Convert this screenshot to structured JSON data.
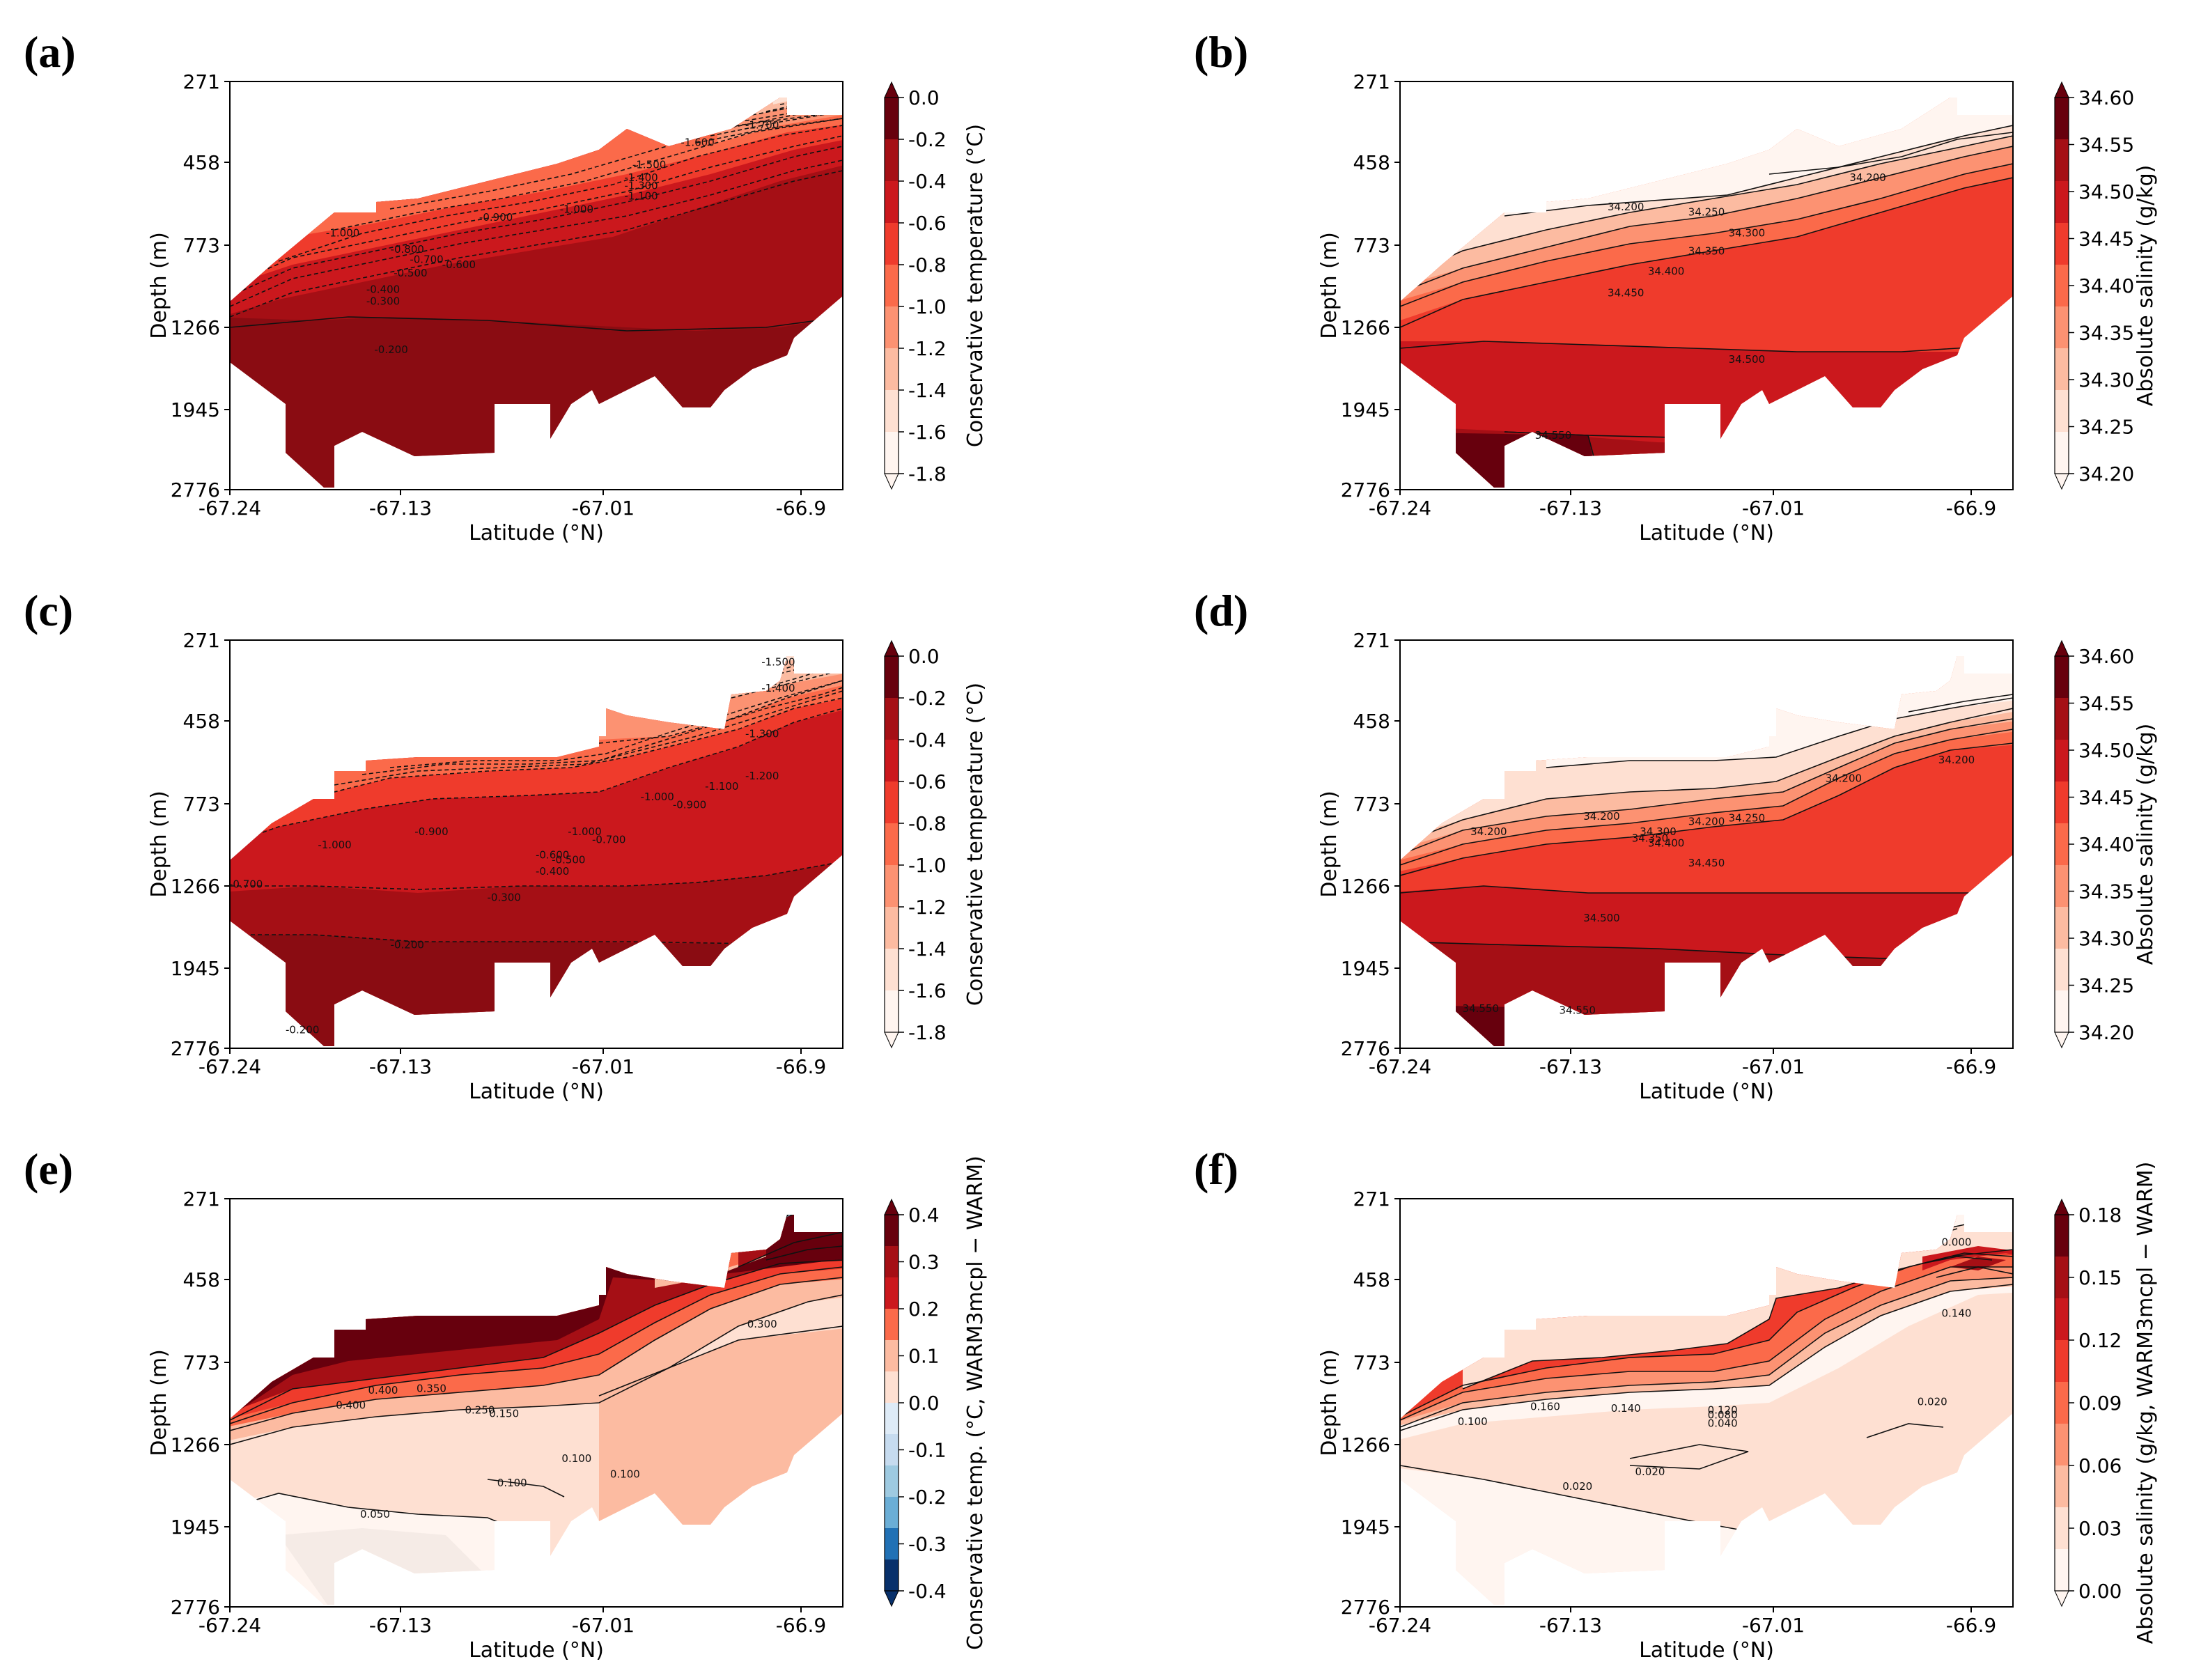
{
  "chart_data": [
    {
      "panel": "(a)",
      "type": "contourf",
      "variable": "temperature",
      "xlabel": "Latitude (°N)",
      "ylabel": "Depth (m)",
      "xticks": [
        "-67.24",
        "-67.13",
        "-67.01",
        "-66.9"
      ],
      "yticks": [
        "271",
        "458",
        "773",
        "1266",
        "1945",
        "2776"
      ],
      "xlim": [
        -67.24,
        -66.86
      ],
      "ylim": [
        2776,
        271
      ],
      "colorbar_label": "Conservative temperature (°C)",
      "colorbar_ticks": [
        "0.0",
        "-0.2",
        "-0.4",
        "-0.6",
        "-0.8",
        "-1.0",
        "-1.2",
        "-1.4",
        "-1.6",
        "-1.8"
      ],
      "contour_labels": [
        {
          "text": "-1.700",
          "lat": -66.91,
          "depth": 380
        },
        {
          "text": "-1.600",
          "lat": -66.95,
          "depth": 420
        },
        {
          "text": "-1.500",
          "lat": -66.98,
          "depth": 480
        },
        {
          "text": "-1.400",
          "lat": -66.985,
          "depth": 530
        },
        {
          "text": "-1.300",
          "lat": -66.985,
          "depth": 560
        },
        {
          "text": "-1.100",
          "lat": -66.985,
          "depth": 600
        },
        {
          "text": "-1.000",
          "lat": -67.025,
          "depth": 650
        },
        {
          "text": "-0.900",
          "lat": -67.075,
          "depth": 680
        },
        {
          "text": "-1.000",
          "lat": -67.17,
          "depth": 740
        },
        {
          "text": "-0.800",
          "lat": -67.13,
          "depth": 820
        },
        {
          "text": "-0.700",
          "lat": -67.118,
          "depth": 880
        },
        {
          "text": "-0.600",
          "lat": -67.098,
          "depth": 910
        },
        {
          "text": "-0.500",
          "lat": -67.128,
          "depth": 960
        },
        {
          "text": "-0.400",
          "lat": -67.145,
          "depth": 1060
        },
        {
          "text": "-0.300",
          "lat": -67.145,
          "depth": 1130
        },
        {
          "text": "-0.200",
          "lat": -67.14,
          "depth": 1480
        }
      ]
    },
    {
      "panel": "(b)",
      "type": "contourf",
      "variable": "salinity",
      "xlabel": "Latitude (°N)",
      "ylabel": "Depth (m)",
      "xticks": [
        "-67.24",
        "-67.13",
        "-67.01",
        "-66.9"
      ],
      "yticks": [
        "271",
        "458",
        "773",
        "1266",
        "1945",
        "2776"
      ],
      "xlim": [
        -67.24,
        -66.86
      ],
      "ylim": [
        2776,
        271
      ],
      "colorbar_label": "Absolute salinity (g/kg)",
      "colorbar_ticks": [
        "34.60",
        "34.55",
        "34.50",
        "34.45",
        "34.40",
        "34.35",
        "34.30",
        "34.25",
        "34.20"
      ],
      "contour_labels": [
        {
          "text": "34.200",
          "lat": -66.95,
          "depth": 530
        },
        {
          "text": "34.200",
          "lat": -67.1,
          "depth": 640
        },
        {
          "text": "34.250",
          "lat": -67.05,
          "depth": 660
        },
        {
          "text": "34.300",
          "lat": -67.025,
          "depth": 740
        },
        {
          "text": "34.350",
          "lat": -67.05,
          "depth": 830
        },
        {
          "text": "34.400",
          "lat": -67.075,
          "depth": 950
        },
        {
          "text": "34.450",
          "lat": -67.1,
          "depth": 1080
        },
        {
          "text": "34.500",
          "lat": -67.025,
          "depth": 1560
        },
        {
          "text": "34.550",
          "lat": -67.145,
          "depth": 2250
        }
      ]
    },
    {
      "panel": "(c)",
      "type": "contourf",
      "variable": "temperature",
      "xlabel": "Latitude (°N)",
      "ylabel": "Depth (m)",
      "xticks": [
        "-67.24",
        "-67.13",
        "-67.01",
        "-66.9"
      ],
      "yticks": [
        "271",
        "458",
        "773",
        "1266",
        "1945",
        "2776"
      ],
      "xlim": [
        -67.24,
        -66.86
      ],
      "ylim": [
        2776,
        271
      ],
      "colorbar_label": "Conservative temperature (°C)",
      "colorbar_ticks": [
        "0.0",
        "-0.2",
        "-0.4",
        "-0.6",
        "-0.8",
        "-1.0",
        "-1.2",
        "-1.4",
        "-1.6",
        "-1.8"
      ],
      "contour_labels": [
        {
          "text": "-1.500",
          "lat": -66.9,
          "depth": 330
        },
        {
          "text": "-1.400",
          "lat": -66.9,
          "depth": 390
        },
        {
          "text": "-1.300",
          "lat": -66.91,
          "depth": 520
        },
        {
          "text": "-1.200",
          "lat": -66.91,
          "depth": 680
        },
        {
          "text": "-1.100",
          "lat": -66.935,
          "depth": 720
        },
        {
          "text": "-1.000",
          "lat": -66.975,
          "depth": 760
        },
        {
          "text": "-0.900",
          "lat": -66.955,
          "depth": 800
        },
        {
          "text": "-0.900",
          "lat": -67.115,
          "depth": 960
        },
        {
          "text": "-1.000",
          "lat": -67.175,
          "depth": 1040
        },
        {
          "text": "-1.000",
          "lat": -67.02,
          "depth": 960
        },
        {
          "text": "-0.700",
          "lat": -67.005,
          "depth": 1010
        },
        {
          "text": "-0.600",
          "lat": -67.04,
          "depth": 1100
        },
        {
          "text": "-0.500",
          "lat": -67.03,
          "depth": 1130
        },
        {
          "text": "-0.400",
          "lat": -67.04,
          "depth": 1200
        },
        {
          "text": "-0.700",
          "lat": -67.23,
          "depth": 1280
        },
        {
          "text": "-0.300",
          "lat": -67.07,
          "depth": 1390
        },
        {
          "text": "-0.200",
          "lat": -67.13,
          "depth": 1780
        },
        {
          "text": "-0.200",
          "lat": -67.195,
          "depth": 2620
        }
      ]
    },
    {
      "panel": "(d)",
      "type": "contourf",
      "variable": "salinity",
      "xlabel": "Latitude (°N)",
      "ylabel": "Depth (m)",
      "xticks": [
        "-67.24",
        "-67.13",
        "-67.01",
        "-66.9"
      ],
      "yticks": [
        "271",
        "458",
        "773",
        "1266",
        "1945",
        "2776"
      ],
      "xlim": [
        -67.24,
        -66.86
      ],
      "ylim": [
        2776,
        271
      ],
      "colorbar_label": "Absolute salinity (g/kg)",
      "colorbar_ticks": [
        "34.60",
        "34.55",
        "34.50",
        "34.45",
        "34.40",
        "34.35",
        "34.30",
        "34.25",
        "34.20"
      ],
      "contour_labels": [
        {
          "text": "34.200",
          "lat": -66.895,
          "depth": 620
        },
        {
          "text": "34.200",
          "lat": -66.965,
          "depth": 690
        },
        {
          "text": "34.200",
          "lat": -67.115,
          "depth": 870
        },
        {
          "text": "34.200",
          "lat": -67.185,
          "depth": 960
        },
        {
          "text": "34.200",
          "lat": -67.05,
          "depth": 900
        },
        {
          "text": "34.250",
          "lat": -67.025,
          "depth": 880
        },
        {
          "text": "34.300",
          "lat": -67.08,
          "depth": 960
        },
        {
          "text": "34.350",
          "lat": -67.085,
          "depth": 1000
        },
        {
          "text": "34.400",
          "lat": -67.075,
          "depth": 1030
        },
        {
          "text": "34.450",
          "lat": -67.05,
          "depth": 1150
        },
        {
          "text": "34.500",
          "lat": -67.115,
          "depth": 1560
        },
        {
          "text": "34.550",
          "lat": -67.19,
          "depth": 2400
        },
        {
          "text": "34.550",
          "lat": -67.13,
          "depth": 2420
        }
      ]
    },
    {
      "panel": "(e)",
      "type": "contourf",
      "variable": "temperature difference",
      "xlabel": "Latitude (°N)",
      "ylabel": "Depth (m)",
      "xticks": [
        "-67.24",
        "-67.13",
        "-67.01",
        "-66.9"
      ],
      "yticks": [
        "271",
        "458",
        "773",
        "1266",
        "1945",
        "2776"
      ],
      "xlim": [
        -67.24,
        -66.86
      ],
      "ylim": [
        2776,
        271
      ],
      "colorbar_label": "Conservative temp. (°C, WARM3mcpl − WARM)",
      "colorbar_ticks": [
        "0.4",
        "0.3",
        "0.2",
        "0.1",
        "0.0",
        "-0.1",
        "-0.2",
        "-0.3",
        "-0.4"
      ],
      "contour_labels": [
        {
          "text": "0.400",
          "lat": -67.165,
          "depth": 1050
        },
        {
          "text": "0.400",
          "lat": -67.145,
          "depth": 960
        },
        {
          "text": "0.350",
          "lat": -67.115,
          "depth": 950
        },
        {
          "text": "0.250",
          "lat": -67.085,
          "depth": 1080
        },
        {
          "text": "0.150",
          "lat": -67.07,
          "depth": 1100
        },
        {
          "text": "0.300",
          "lat": -66.91,
          "depth": 640
        },
        {
          "text": "0.100",
          "lat": -67.025,
          "depth": 1410
        },
        {
          "text": "0.100",
          "lat": -66.995,
          "depth": 1540
        },
        {
          "text": "0.100",
          "lat": -67.065,
          "depth": 1610
        },
        {
          "text": "0.050",
          "lat": -67.15,
          "depth": 1870
        }
      ]
    },
    {
      "panel": "(f)",
      "type": "contourf",
      "variable": "salinity difference",
      "xlabel": "Latitude (°N)",
      "ylabel": "Depth (m)",
      "xticks": [
        "-67.24",
        "-67.13",
        "-67.01",
        "-66.9"
      ],
      "yticks": [
        "271",
        "458",
        "773",
        "1266",
        "1945",
        "2776"
      ],
      "xlim": [
        -67.24,
        -66.86
      ],
      "ylim": [
        2776,
        271
      ],
      "colorbar_label": "Absolute salinity (g/kg, WARM3mcpl − WARM)",
      "colorbar_ticks": [
        "0.18",
        "0.15",
        "0.12",
        "0.09",
        "0.06",
        "0.03",
        "0.00"
      ],
      "contour_labels": [
        {
          "text": "0.000",
          "lat": -66.895,
          "depth": 380
        },
        {
          "text": "0.140",
          "lat": -66.895,
          "depth": 600
        },
        {
          "text": "0.140",
          "lat": -67.1,
          "depth": 1070
        },
        {
          "text": "0.120",
          "lat": -67.04,
          "depth": 1080
        },
        {
          "text": "0.080",
          "lat": -67.04,
          "depth": 1110
        },
        {
          "text": "0.040",
          "lat": -67.04,
          "depth": 1160
        },
        {
          "text": "0.160",
          "lat": -67.15,
          "depth": 1060
        },
        {
          "text": "0.100",
          "lat": -67.195,
          "depth": 1150
        },
        {
          "text": "0.020",
          "lat": -67.085,
          "depth": 1520
        },
        {
          "text": "0.020",
          "lat": -67.13,
          "depth": 1640
        },
        {
          "text": "0.020",
          "lat": -66.91,
          "depth": 1030
        }
      ]
    }
  ]
}
